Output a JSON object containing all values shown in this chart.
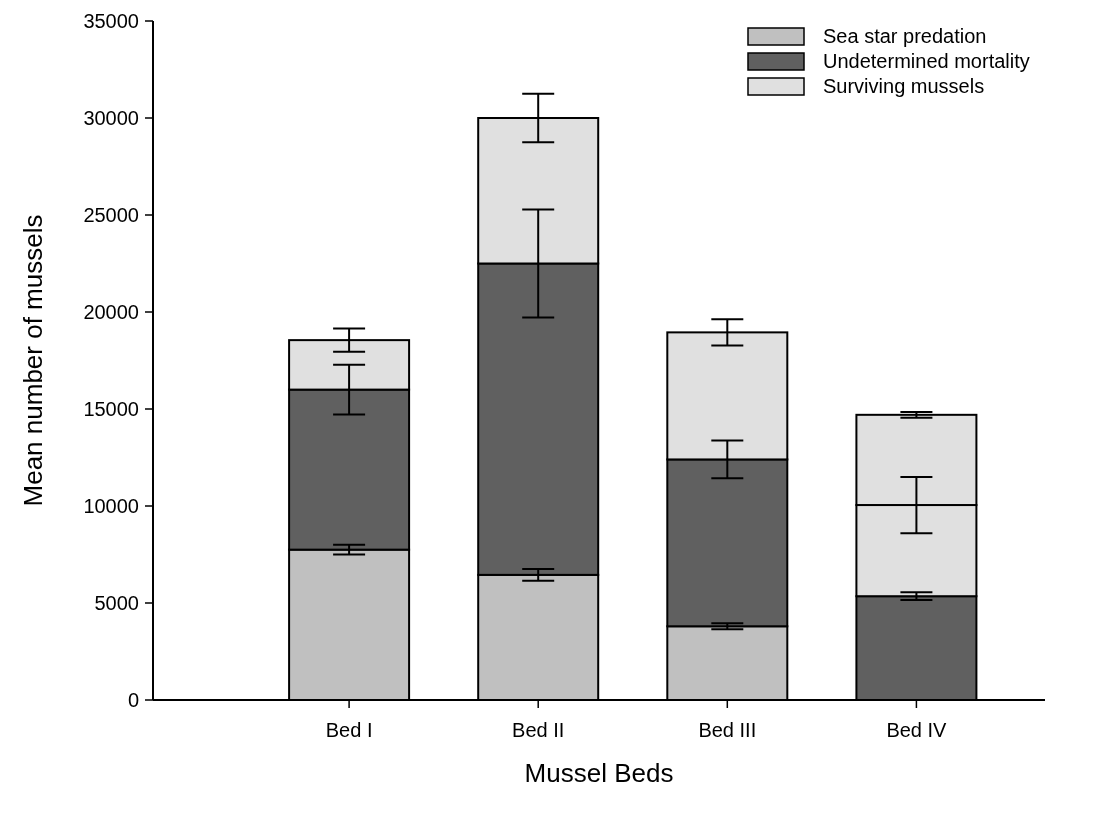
{
  "chart_data": {
    "type": "bar",
    "stacked": true,
    "xlabel": "Mussel Beds",
    "ylabel": "Mean number of mussels",
    "categories": [
      "Bed I",
      "Bed II",
      "Bed III",
      "Bed IV"
    ],
    "series": [
      {
        "name": "Sea star predation",
        "color": "#c0c0c0",
        "colors": [
          "#c0c0c0",
          "#c0c0c0",
          "#c0c0c0",
          "#606060"
        ],
        "values": [
          7750,
          6450,
          3800,
          5350
        ],
        "errors": [
          250,
          300,
          150,
          200
        ]
      },
      {
        "name": "Undetermined mortality",
        "color": "#606060",
        "colors": [
          "#606060",
          "#606060",
          "#606060",
          "#e0e0e0"
        ],
        "values": [
          8250,
          16050,
          8600,
          4700
        ],
        "errors": [
          1280,
          2780,
          975,
          1450
        ]
      },
      {
        "name": "Surviving mussels",
        "color": "#e0e0e0",
        "values": [
          2550,
          7500,
          6550,
          4650
        ],
        "errors": [
          600,
          1250,
          675,
          150
        ]
      }
    ],
    "ylim": [
      0,
      35000
    ],
    "yticks": [
      0,
      5000,
      10000,
      15000,
      20000,
      25000,
      30000,
      35000
    ],
    "legend": "top right"
  }
}
